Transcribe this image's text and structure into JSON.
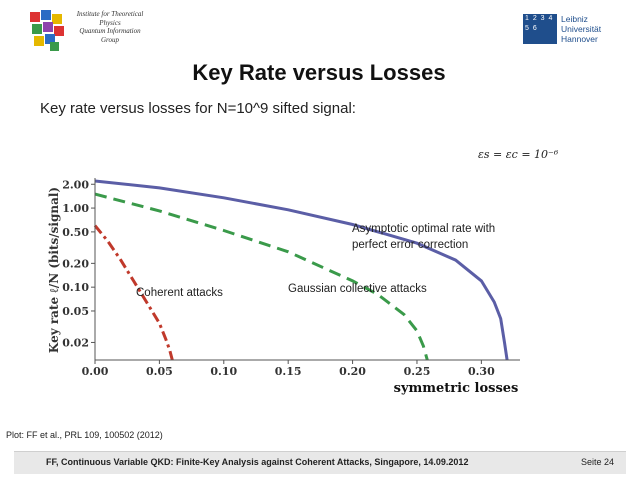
{
  "header": {
    "institute_lines": [
      "Institute for Theoretical",
      "Physics",
      "Quantum Information",
      "Group"
    ],
    "university_mark": "1 2 3 4 5 6",
    "university_lines": [
      "Leibniz",
      "Universität",
      "Hannover"
    ]
  },
  "slide": {
    "title": "Key Rate versus Losses",
    "subtitle": "Key rate versus losses for N=10^9 sifted signal:",
    "formula": "εs = εc = 10⁻⁶",
    "caption": "Plot: FF et al., PRL 109, 100502 (2012)"
  },
  "footer": {
    "text": "FF, Continuous Variable QKD: Finite-Key Analysis against Coherent Attacks, Singapore, 14.09.2012",
    "page": "Seite 24"
  },
  "colors": {
    "optimal": "#5b5ea6",
    "gaussian": "#3a9a4a",
    "coherent": "#c0392b"
  },
  "chart_data": {
    "type": "line",
    "xlabel": "symmetric losses",
    "ylabel": "Key rate ℓ/N (bits/signal)",
    "xlim": [
      0.0,
      0.33
    ],
    "ylog": true,
    "ylim": [
      0.012,
      2.4
    ],
    "x_ticks": [
      "0.00",
      "0.05",
      "0.10",
      "0.15",
      "0.20",
      "0.25",
      "0.30"
    ],
    "y_ticks": [
      {
        "v": 2.0,
        "label": "2.00"
      },
      {
        "v": 1.0,
        "label": "1.00"
      },
      {
        "v": 0.5,
        "label": "0.50"
      },
      {
        "v": 0.2,
        "label": "0.20"
      },
      {
        "v": 0.1,
        "label": "0.10"
      },
      {
        "v": 0.05,
        "label": "0.05"
      },
      {
        "v": 0.02,
        "label": "0.02"
      }
    ],
    "series": [
      {
        "key": "optimal",
        "style": "solid",
        "x": [
          0.0,
          0.05,
          0.1,
          0.15,
          0.2,
          0.25,
          0.28,
          0.3,
          0.31,
          0.315,
          0.318,
          0.32
        ],
        "y": [
          2.2,
          1.8,
          1.35,
          0.95,
          0.62,
          0.36,
          0.22,
          0.12,
          0.065,
          0.04,
          0.02,
          0.012
        ]
      },
      {
        "key": "gaussian",
        "style": "dashed",
        "x": [
          0.0,
          0.05,
          0.1,
          0.15,
          0.2,
          0.22,
          0.24,
          0.25,
          0.255,
          0.258
        ],
        "y": [
          1.5,
          0.92,
          0.52,
          0.28,
          0.12,
          0.08,
          0.045,
          0.028,
          0.018,
          0.012
        ]
      },
      {
        "key": "coherent",
        "style": "dashdot",
        "x": [
          0.0,
          0.01,
          0.02,
          0.03,
          0.04,
          0.05,
          0.055,
          0.058,
          0.06
        ],
        "y": [
          0.6,
          0.38,
          0.22,
          0.12,
          0.065,
          0.035,
          0.022,
          0.016,
          0.012
        ]
      }
    ],
    "annotations": [
      {
        "key": "coherent",
        "lines": [
          "Coherent attacks"
        ]
      },
      {
        "key": "gaussian",
        "lines": [
          "Gaussian collective attacks"
        ]
      },
      {
        "key": "optimal",
        "lines": [
          "Asymptotic optimal rate with",
          "perfect error correction"
        ]
      }
    ]
  }
}
